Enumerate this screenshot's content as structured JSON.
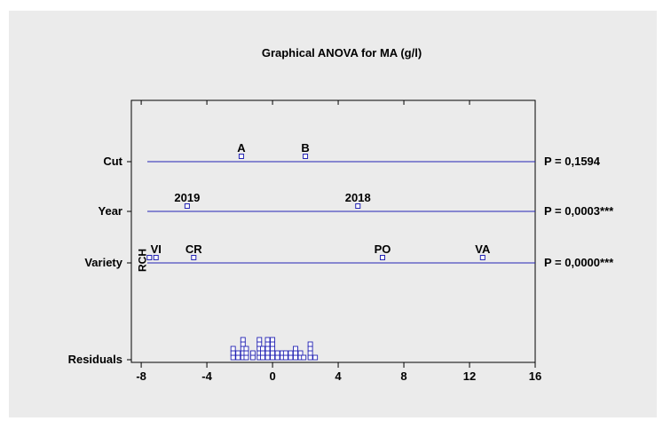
{
  "chart_data": {
    "type": "graphical-anova",
    "title": "Graphical ANOVA for MA (g/l)",
    "color": "#2323b4",
    "xlim": [
      -8.6,
      16
    ],
    "xticks": [
      -8,
      -4,
      0,
      4,
      8,
      12,
      16
    ],
    "factors": [
      {
        "name": "Cut",
        "levels": [
          "A",
          "B"
        ],
        "values": [
          -1.9,
          2.0
        ],
        "p_label": "P = 0,1594"
      },
      {
        "name": "Year",
        "levels": [
          "2019",
          "2018"
        ],
        "values": [
          -5.2,
          5.2
        ],
        "p_label": "P = 0,0003***"
      },
      {
        "name": "Variety",
        "levels": [
          "RCH",
          "VI",
          "CR",
          "PO",
          "VA"
        ],
        "values": [
          -7.5,
          -7.1,
          -4.8,
          6.7,
          12.8
        ],
        "p_label": "P = 0,0000***"
      }
    ],
    "residuals": {
      "name": "Residuals",
      "x": [
        -2.4,
        -2.1,
        -1.8,
        -1.6,
        -1.2,
        -0.8,
        -0.6,
        -0.3,
        0.0,
        0.3,
        0.6,
        0.8,
        1.1,
        1.4,
        1.7,
        1.9,
        2.3,
        2.6
      ],
      "counts": [
        3,
        2,
        5,
        3,
        2,
        5,
        3,
        5,
        5,
        2,
        2,
        2,
        2,
        3,
        2,
        1,
        4,
        1
      ]
    }
  }
}
